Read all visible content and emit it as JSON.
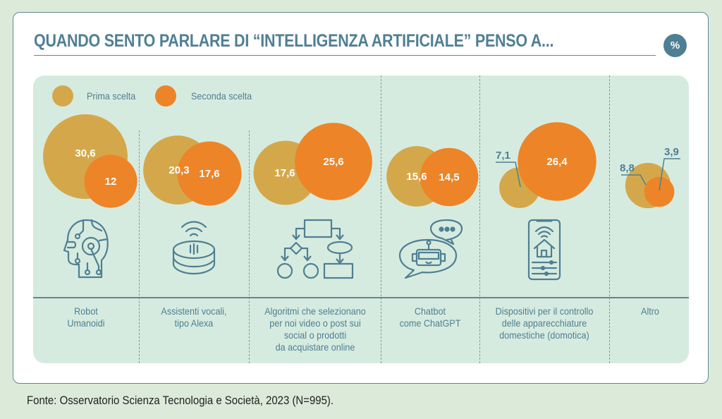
{
  "header": {
    "title": "QUANDO SENTO PARLARE DI “INTELLIGENZA ARTIFICIALE” PENSO A...",
    "unit_badge": "%"
  },
  "legend": [
    {
      "label": "Prima scelta",
      "color": "#d4a84a"
    },
    {
      "label": "Seconda scelta",
      "color": "#ed8428"
    }
  ],
  "categories": [
    {
      "label_lines": [
        "Robot",
        "Umanoidi"
      ],
      "icon": "robot-head-icon"
    },
    {
      "label_lines": [
        "Assistenti vocali,",
        "tipo Alexa"
      ],
      "icon": "smart-speaker-icon"
    },
    {
      "label_lines": [
        "Algoritmi che selezionano",
        "per noi video o post sui",
        "social o prodotti",
        "da acquistare online"
      ],
      "icon": "flowchart-icon"
    },
    {
      "label_lines": [
        "Chatbot",
        "come ChatGPT"
      ],
      "icon": "chatbot-icon"
    },
    {
      "label_lines": [
        "Dispositivi per il controllo",
        "delle apparecchiature",
        "domestiche (domotica)"
      ],
      "icon": "smart-home-phone-icon"
    },
    {
      "label_lines": [
        "Altro"
      ],
      "icon": ""
    }
  ],
  "chart_data": {
    "type": "bubble",
    "title": "QUANDO SENTO PARLARE DI “INTELLIGENZA ARTIFICIALE” PENSO A...",
    "unit": "%",
    "categories": [
      "Robot Umanoidi",
      "Assistenti vocali, tipo Alexa",
      "Algoritmi che selezionano per noi video o post sui social o prodotti da acquistare online",
      "Chatbot come ChatGPT",
      "Dispositivi per il controllo delle apparecchiature domestiche (domotica)",
      "Altro"
    ],
    "series": [
      {
        "name": "Prima scelta",
        "color": "#d4a84a",
        "values": [
          30.6,
          20.3,
          17.6,
          15.6,
          7.1,
          8.8
        ],
        "labels": [
          "30,6",
          "20,3",
          "17,6",
          "15,6",
          "7,1",
          "8,8"
        ]
      },
      {
        "name": "Seconda scelta",
        "color": "#ed8428",
        "values": [
          12,
          17.6,
          25.6,
          14.5,
          26.4,
          3.9
        ],
        "labels": [
          "12",
          "17,6",
          "25,6",
          "14,5",
          "26,4",
          "3,9"
        ]
      }
    ],
    "legend_position": "top-left"
  },
  "source": "Fonte: Osservatorio Scienza Tecnologia e Società, 2023 (N=995)."
}
